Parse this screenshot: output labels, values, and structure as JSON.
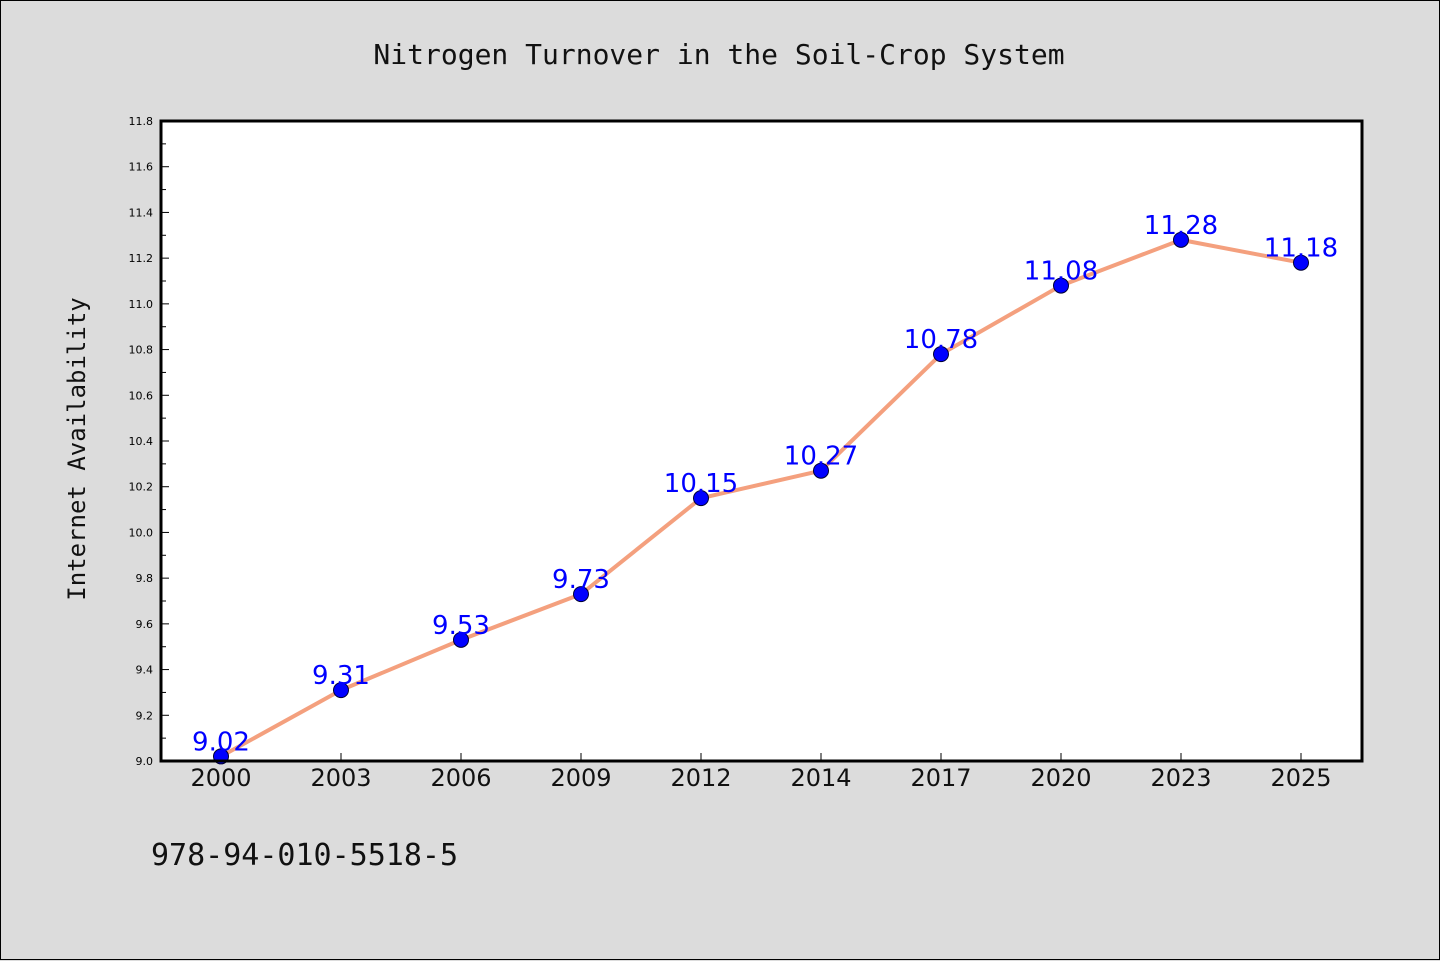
{
  "chart_data": {
    "type": "line",
    "title": "Nitrogen Turnover in the Soil-Crop System",
    "xlabel": "",
    "ylabel": "Internet Availability",
    "categories": [
      "2000",
      "2003",
      "2006",
      "2009",
      "2012",
      "2014",
      "2017",
      "2020",
      "2023",
      "2025"
    ],
    "series": [
      {
        "values": [
          9.02,
          9.31,
          9.53,
          9.73,
          10.15,
          10.27,
          10.78,
          11.08,
          11.28,
          11.18
        ],
        "line_color": "#f4a07e",
        "marker_color": "#0000ff"
      }
    ],
    "data_labels": [
      "9.02",
      "9.31",
      "9.53",
      "9.73",
      "10.15",
      "10.27",
      "10.78",
      "11.08",
      "11.28",
      "11.18"
    ],
    "ylim": [
      9.0,
      11.8
    ],
    "yticks": [
      "9.0",
      "9.2",
      "9.4",
      "9.6",
      "9.8",
      "10.0",
      "10.2",
      "10.4",
      "10.6",
      "10.8",
      "11.0",
      "11.2",
      "11.4",
      "11.6",
      "11.8"
    ],
    "grid": false,
    "legend": "none"
  },
  "annotation": "978-94-010-5518-5",
  "colors": {
    "background": "#dcdcdc",
    "plot_background": "#ffffff",
    "line": "#f4a07e",
    "marker": "#0000ff",
    "data_label": "#0000ff"
  }
}
